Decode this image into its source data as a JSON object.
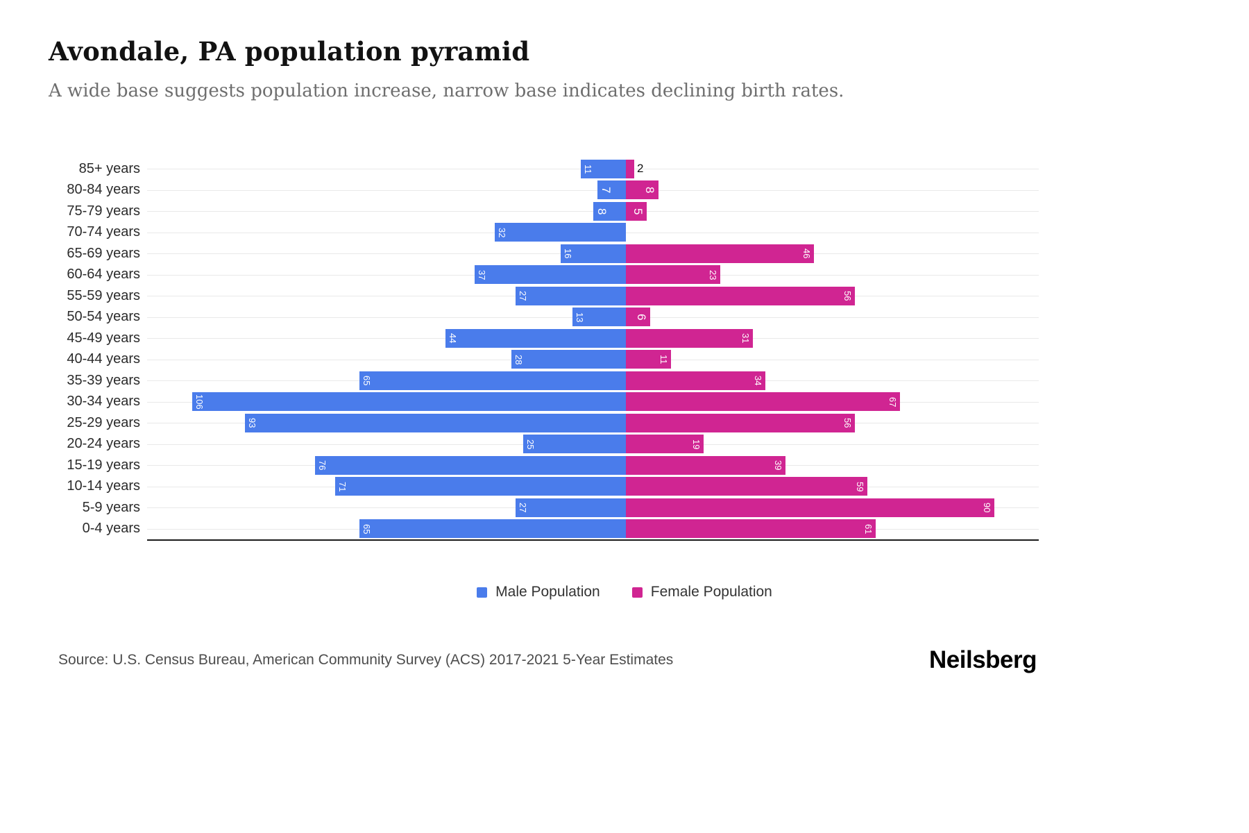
{
  "title": "Avondale, PA population pyramid",
  "subtitle": "A wide base suggests population increase, narrow base indicates declining birth rates.",
  "legend": {
    "male_label": "Male Population",
    "female_label": "Female Population"
  },
  "footer": {
    "source": "Source: U.S. Census Bureau, American Community Survey (ACS) 2017-2021 5-Year Estimates",
    "brand": "Neilsberg"
  },
  "colors": {
    "male": "#4A7CEB",
    "female": "#D02592",
    "gridline": "#E9E9E9",
    "axis_line": "#1A1A1A"
  },
  "chart_data": {
    "type": "bar",
    "variant": "population-pyramid",
    "title": "Avondale, PA population pyramid",
    "xlabel": "",
    "ylabel": "",
    "grid": "horizontal gridline per age group",
    "legend_position": "bottom-center",
    "value_labels": "inside outer end of bar, rotated 90 degrees, white; shown outside in black when bar is too small; hidden when value is 0",
    "categories": [
      "85+ years",
      "80-84 years",
      "75-79 years",
      "70-74 years",
      "65-69 years",
      "60-64 years",
      "55-59 years",
      "50-54 years",
      "45-49 years",
      "40-44 years",
      "35-39 years",
      "30-34 years",
      "25-29 years",
      "20-24 years",
      "15-19 years",
      "10-14 years",
      "5-9 years",
      "0-4 years"
    ],
    "series": [
      {
        "name": "Male Population",
        "side": "left",
        "color": "#4A7CEB",
        "values": [
          11,
          7,
          8,
          32,
          16,
          37,
          27,
          13,
          44,
          28,
          65,
          106,
          93,
          25,
          76,
          71,
          27,
          65
        ]
      },
      {
        "name": "Female Population",
        "side": "right",
        "color": "#D02592",
        "values": [
          2,
          8,
          5,
          0,
          46,
          23,
          56,
          6,
          31,
          11,
          34,
          67,
          56,
          19,
          39,
          59,
          90,
          61
        ]
      }
    ]
  }
}
